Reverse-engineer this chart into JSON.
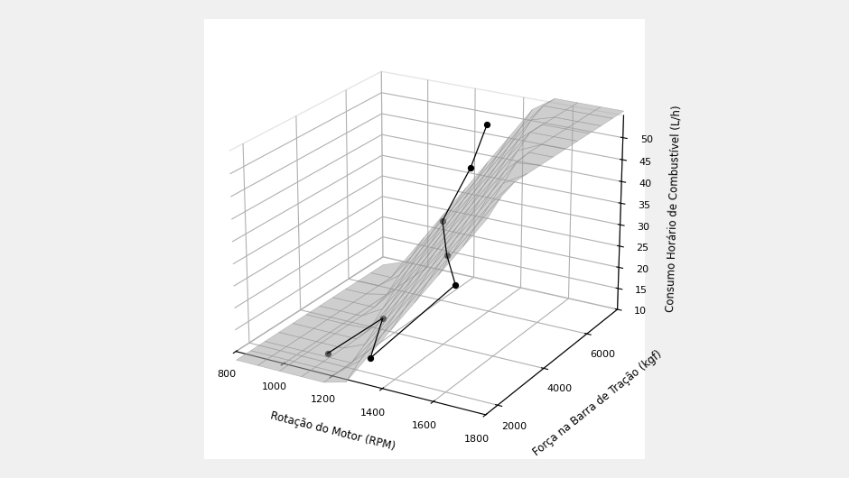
{
  "xlabel": "Rotação do Motor (RPM)",
  "ylabel": "Força na Barra de Tração (kgf)",
  "zlabel": "Consumo Horário de Combustível (L/h)",
  "rpm_ticks": [
    800,
    1000,
    1200,
    1400,
    1600,
    1800
  ],
  "bt_ticks": [
    2000,
    4000,
    6000
  ],
  "chc_ticks": [
    10,
    15,
    20,
    25,
    30,
    35,
    40,
    45,
    50
  ],
  "scatter_points": [
    [
      1000,
      3200,
      5.5
    ],
    [
      1050,
      5000,
      7.5
    ],
    [
      1200,
      3200,
      8.0
    ],
    [
      1280,
      5800,
      15.5
    ],
    [
      1300,
      5200,
      25.0
    ],
    [
      1320,
      4800,
      34.5
    ],
    [
      1340,
      5800,
      43.5
    ],
    [
      1350,
      6400,
      51.5
    ]
  ],
  "rpm_range": [
    800,
    1800
  ],
  "bt_range": [
    1500,
    7500
  ],
  "chc_range": [
    10,
    55
  ],
  "elev": 22,
  "azim": -60
}
